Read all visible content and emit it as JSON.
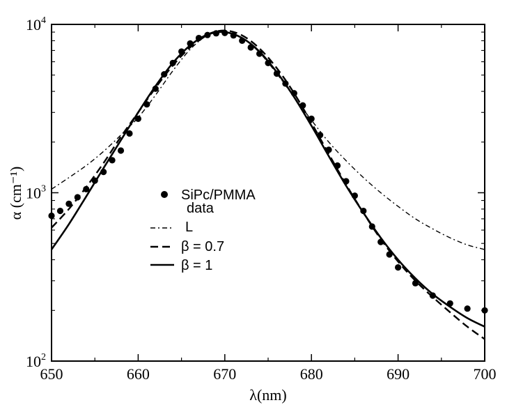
{
  "chart_data": {
    "type": "line",
    "title": "",
    "xlabel": "λ(nm)",
    "ylabel": "α (cm⁻¹)",
    "xlim": [
      650,
      700
    ],
    "ylim": [
      100,
      10000
    ],
    "yscale": "log",
    "x_ticks": [
      650,
      660,
      670,
      680,
      690,
      700
    ],
    "x_tick_labels": [
      "650",
      "660",
      "670",
      "680",
      "690",
      "700"
    ],
    "y_ticks": [
      100,
      1000,
      10000
    ],
    "y_tick_labels": [
      {
        "base": "10",
        "exp": "2"
      },
      {
        "base": "10",
        "exp": "3"
      },
      {
        "base": "10",
        "exp": "4"
      }
    ],
    "legend": {
      "position": "center-left",
      "entries": [
        {
          "label": "SiPc/PMMA",
          "label2": "data",
          "style": "dots"
        },
        {
          "label": "L",
          "style": "dash-dot"
        },
        {
          "label": "β = 0.7",
          "style": "dashed"
        },
        {
          "label": "β = 1",
          "style": "solid"
        }
      ]
    },
    "series": [
      {
        "name": "SiPc/PMMA data",
        "style": "dots",
        "x": [
          650,
          651,
          652,
          653,
          654,
          655,
          656,
          657,
          658,
          659,
          660,
          661,
          662,
          663,
          664,
          665,
          666,
          667,
          668,
          669,
          670,
          671,
          672,
          673,
          674,
          675,
          676,
          677,
          678,
          679,
          680,
          681,
          682,
          683,
          684,
          685,
          686,
          687,
          688,
          689,
          690,
          692,
          694,
          696,
          698,
          700
        ],
        "y": [
          730,
          780,
          860,
          940,
          1050,
          1180,
          1330,
          1560,
          1780,
          2250,
          2750,
          3350,
          4150,
          5050,
          5900,
          6900,
          7700,
          8300,
          8650,
          8850,
          8900,
          8600,
          8000,
          7300,
          6700,
          5900,
          5100,
          4450,
          3900,
          3300,
          2750,
          2200,
          1800,
          1450,
          1170,
          960,
          780,
          630,
          510,
          430,
          360,
          290,
          245,
          220,
          205,
          200
        ]
      },
      {
        "name": "L",
        "style": "dash-dot",
        "x": [
          650,
          652,
          654,
          656,
          658,
          660,
          662,
          664,
          666,
          668,
          670,
          672,
          674,
          676,
          678,
          680,
          682,
          684,
          686,
          688,
          690,
          692,
          694,
          696,
          698,
          700
        ],
        "y": [
          1050,
          1230,
          1450,
          1760,
          2200,
          2800,
          3800,
          5300,
          7100,
          8600,
          9000,
          8300,
          6800,
          5100,
          3700,
          2700,
          2000,
          1550,
          1230,
          1000,
          830,
          700,
          610,
          540,
          490,
          460
        ]
      },
      {
        "name": "β = 0.7",
        "style": "dashed",
        "x": [
          650,
          652,
          654,
          656,
          658,
          660,
          662,
          664,
          666,
          668,
          670,
          672,
          674,
          676,
          678,
          680,
          682,
          684,
          686,
          688,
          690,
          692,
          694,
          696,
          698,
          700
        ],
        "y": [
          620,
          800,
          1080,
          1500,
          2150,
          3000,
          4200,
          5700,
          7300,
          8700,
          9200,
          8600,
          7200,
          5500,
          3900,
          2600,
          1700,
          1120,
          760,
          530,
          390,
          300,
          240,
          195,
          160,
          135
        ]
      },
      {
        "name": "β = 1",
        "style": "solid",
        "x": [
          650,
          652,
          654,
          656,
          658,
          660,
          662,
          664,
          666,
          668,
          670,
          672,
          674,
          676,
          678,
          680,
          682,
          684,
          686,
          688,
          690,
          692,
          694,
          696,
          698,
          700
        ],
        "y": [
          460,
          650,
          950,
          1400,
          2050,
          3000,
          4300,
          5900,
          7500,
          8700,
          9000,
          8300,
          6900,
          5200,
          3700,
          2500,
          1650,
          1100,
          760,
          540,
          400,
          310,
          250,
          210,
          180,
          160
        ]
      }
    ]
  }
}
